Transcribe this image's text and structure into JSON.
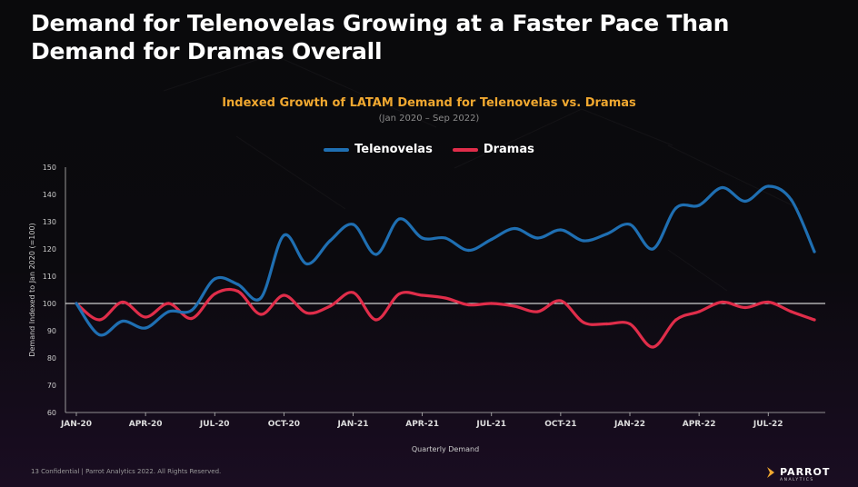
{
  "slide": {
    "title_line1": "Demand for Telenovelas Growing at a Faster Pace Than",
    "title_line2": "Demand for Dramas Overall",
    "footer": "13  Confidential  |  Parrot Analytics 2022. All Rights Reserved.",
    "logo_name": "PARROT",
    "logo_sub": "ANALYTICS",
    "logo_icon": "parrot-chevron-icon"
  },
  "chart_data": {
    "type": "line",
    "title": "Indexed Growth of LATAM Demand for Telenovelas vs. Dramas",
    "subtitle": "(Jan 2020 – Sep 2022)",
    "xlabel": "Quarterly Demand",
    "ylabel": "Demand Indexed to Jan 2020 (=100)",
    "ylim": [
      60,
      150
    ],
    "yticks": [
      "60",
      "70",
      "80",
      "90",
      "100",
      "110",
      "120",
      "130",
      "140",
      "150"
    ],
    "reference_line": 100,
    "x_tick_labels": [
      "JAN-20",
      "APR-20",
      "JUL-20",
      "OCT-20",
      "JAN-21",
      "APR-21",
      "JUL-21",
      "OCT-21",
      "JAN-22",
      "APR-22",
      "JUL-22"
    ],
    "series": [
      {
        "name": "Telenovelas",
        "color": "#1f6fb2",
        "values": [
          100,
          88.5,
          93.5,
          91,
          97,
          97.5,
          109,
          107,
          102,
          125,
          114.5,
          123,
          129,
          118,
          131,
          124,
          124,
          119.5,
          123.5,
          127.5,
          124,
          127,
          123,
          125.5,
          129,
          120,
          135,
          136,
          142.5,
          137.5,
          143,
          138,
          119
        ]
      },
      {
        "name": "Dramas",
        "color": "#e02d4a",
        "values": [
          100,
          94,
          100.5,
          95,
          100,
          94.5,
          103.5,
          104.5,
          96,
          103,
          96.5,
          99,
          104,
          94,
          103.5,
          103,
          102,
          99.5,
          100,
          99,
          97,
          101,
          93,
          92.5,
          92.5,
          84,
          94,
          97,
          100.5,
          98.5,
          100.5,
          97,
          94
        ]
      }
    ]
  }
}
